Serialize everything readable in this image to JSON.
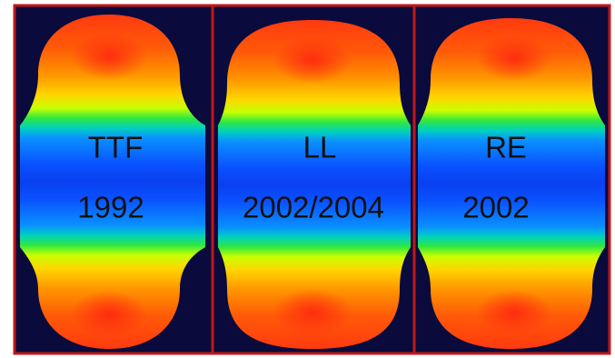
{
  "colors": {
    "background": "#0a0a3c",
    "frame": "#c01818",
    "page": "#ffffff",
    "text": "#111111",
    "gradient": [
      "#ff3a10",
      "#ff8a00",
      "#ffd500",
      "#b8ff00",
      "#18e64a",
      "#00c8c8",
      "#0a8cff",
      "#0a50ff"
    ]
  },
  "panels": [
    {
      "name": "TTF",
      "year": "1992",
      "shape": "elongated-cell-with-narrow-waist"
    },
    {
      "name": "LL",
      "year": "2002/2004",
      "shape": "rounded-cylinder"
    },
    {
      "name": "RE",
      "year": "2002",
      "shape": "cell-with-slight-waist"
    }
  ]
}
